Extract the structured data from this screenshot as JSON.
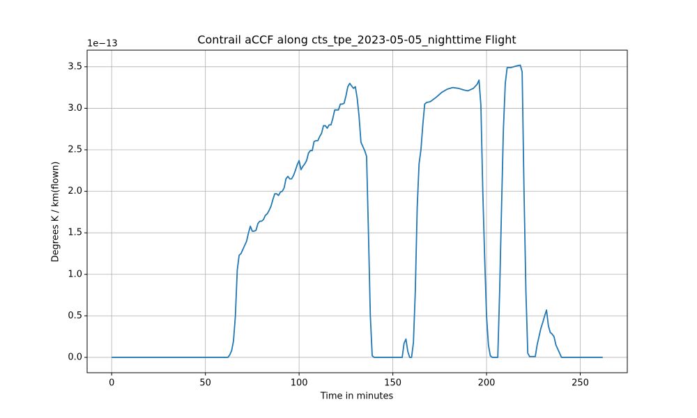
{
  "chart_data": {
    "type": "line",
    "title": "Contrail aCCF along cts_tpe_2023-05-05_nighttime Flight",
    "xlabel": "Time in minutes",
    "ylabel": "Degrees K / km(flown)",
    "y_offset_label": "1e−13",
    "grid": true,
    "xlim": [
      -13.1,
      275.1
    ],
    "ylim": [
      -0.185,
      3.7
    ],
    "xticks": [
      0,
      50,
      100,
      150,
      200,
      250
    ],
    "yticks": [
      {
        "value": 0,
        "label": "0.0"
      },
      {
        "value": 0.5,
        "label": "0.5"
      },
      {
        "value": 1,
        "label": "1.0"
      },
      {
        "value": 1.5,
        "label": "1.5"
      },
      {
        "value": 2,
        "label": "2.0"
      },
      {
        "value": 2.5,
        "label": "2.5"
      },
      {
        "value": 3,
        "label": "3.0"
      },
      {
        "value": 3.5,
        "label": "3.5"
      }
    ],
    "x": [
      0,
      60,
      62,
      63,
      64,
      65,
      66,
      67,
      68,
      69,
      70,
      71,
      72,
      73,
      74,
      75,
      76,
      77,
      78,
      79,
      80,
      81,
      82,
      83,
      84,
      85,
      86,
      87,
      88,
      89,
      90,
      91,
      92,
      93,
      94,
      95,
      96,
      97,
      98,
      99,
      100,
      101,
      102,
      103,
      104,
      105,
      106,
      107,
      108,
      109,
      110,
      111,
      112,
      113,
      114,
      115,
      116,
      117,
      118,
      119,
      120,
      121,
      122,
      123,
      124,
      125,
      126,
      127,
      128,
      129,
      130,
      131,
      132,
      133,
      134,
      135,
      136,
      137,
      138,
      139,
      140,
      155,
      156,
      157,
      158,
      159,
      160,
      161,
      162,
      163,
      164,
      165,
      166,
      167,
      168,
      170,
      173,
      176,
      179,
      182,
      185,
      188,
      190,
      193,
      195,
      196,
      197,
      198,
      199,
      200,
      201,
      202,
      203,
      206,
      207,
      208,
      209,
      210,
      211,
      213,
      216,
      218,
      219,
      220,
      221,
      222,
      223,
      226,
      227,
      228,
      229,
      230,
      231,
      232,
      233,
      234,
      235,
      236,
      237,
      238,
      239,
      240,
      262
    ],
    "series": [
      {
        "name": "aCCF",
        "color": "#1f77b4",
        "values": [
          0,
          0,
          0,
          0.03,
          0.08,
          0.2,
          0.5,
          1.05,
          1.23,
          1.25,
          1.3,
          1.35,
          1.4,
          1.5,
          1.58,
          1.52,
          1.52,
          1.53,
          1.61,
          1.64,
          1.64,
          1.66,
          1.71,
          1.73,
          1.77,
          1.82,
          1.9,
          1.97,
          1.97,
          1.95,
          1.99,
          2.0,
          2.04,
          2.15,
          2.18,
          2.15,
          2.15,
          2.19,
          2.25,
          2.32,
          2.37,
          2.26,
          2.3,
          2.33,
          2.37,
          2.46,
          2.49,
          2.49,
          2.6,
          2.61,
          2.61,
          2.66,
          2.7,
          2.79,
          2.79,
          2.76,
          2.8,
          2.8,
          2.88,
          2.98,
          2.98,
          2.98,
          3.05,
          3.05,
          3.06,
          3.15,
          3.26,
          3.3,
          3.27,
          3.24,
          3.26,
          3.12,
          2.9,
          2.59,
          2.54,
          2.49,
          2.42,
          1.5,
          0.5,
          0.02,
          0,
          0,
          0.17,
          0.22,
          0.07,
          0,
          0,
          0.18,
          0.8,
          1.8,
          2.33,
          2.5,
          2.8,
          3.05,
          3.07,
          3.08,
          3.13,
          3.19,
          3.23,
          3.25,
          3.24,
          3.22,
          3.21,
          3.24,
          3.29,
          3.34,
          3.03,
          2.0,
          1.2,
          0.5,
          0.15,
          0.02,
          0,
          0,
          0.8,
          1.8,
          2.75,
          3.3,
          3.49,
          3.49,
          3.51,
          3.52,
          3.44,
          2.0,
          0.8,
          0.05,
          0.01,
          0.01,
          0.15,
          0.25,
          0.35,
          0.42,
          0.5,
          0.57,
          0.38,
          0.3,
          0.28,
          0.25,
          0.15,
          0.1,
          0.05,
          0,
          0
        ]
      }
    ]
  }
}
